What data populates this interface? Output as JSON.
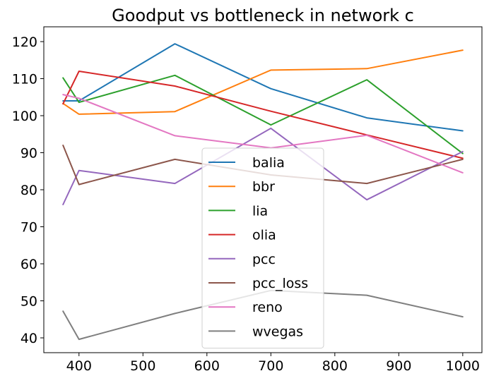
{
  "chart_data": {
    "type": "line",
    "title": "Goodput vs bottleneck in network c",
    "xlabel": "",
    "ylabel": "",
    "x": [
      375,
      400,
      550,
      700,
      850,
      1000
    ],
    "xlim": [
      345,
      1030
    ],
    "ylim": [
      36,
      124
    ],
    "xticks": [
      400,
      500,
      600,
      700,
      800,
      900,
      1000
    ],
    "yticks": [
      40,
      50,
      60,
      70,
      80,
      90,
      100,
      110,
      120
    ],
    "legend": "center-bottom",
    "grid": false,
    "series": [
      {
        "name": "balia",
        "color": "#1f77b4",
        "values": [
          104.0,
          104.0,
          119.4,
          107.3,
          99.4,
          95.9
        ]
      },
      {
        "name": "bbr",
        "color": "#ff7f0e",
        "values": [
          103.3,
          100.4,
          101.1,
          112.3,
          112.7,
          117.7
        ]
      },
      {
        "name": "lia",
        "color": "#2ca02c",
        "values": [
          110.2,
          103.6,
          110.9,
          97.5,
          109.7,
          89.8
        ]
      },
      {
        "name": "olia",
        "color": "#d62728",
        "values": [
          103.2,
          112.0,
          108.0,
          101.2,
          94.8,
          88.5
        ]
      },
      {
        "name": "pcc",
        "color": "#9467bd",
        "values": [
          76.0,
          85.2,
          81.7,
          96.6,
          77.3,
          90.3
        ]
      },
      {
        "name": "pcc_loss",
        "color": "#8c564b",
        "values": [
          92.0,
          81.4,
          88.2,
          84.0,
          81.7,
          88.2
        ]
      },
      {
        "name": "reno",
        "color": "#e377c2",
        "values": [
          105.7,
          104.7,
          94.6,
          91.3,
          94.7,
          84.6
        ]
      },
      {
        "name": "wvegas",
        "color": "#7f7f7f",
        "values": [
          47.2,
          39.6,
          46.6,
          52.8,
          51.5,
          45.7
        ]
      }
    ]
  }
}
